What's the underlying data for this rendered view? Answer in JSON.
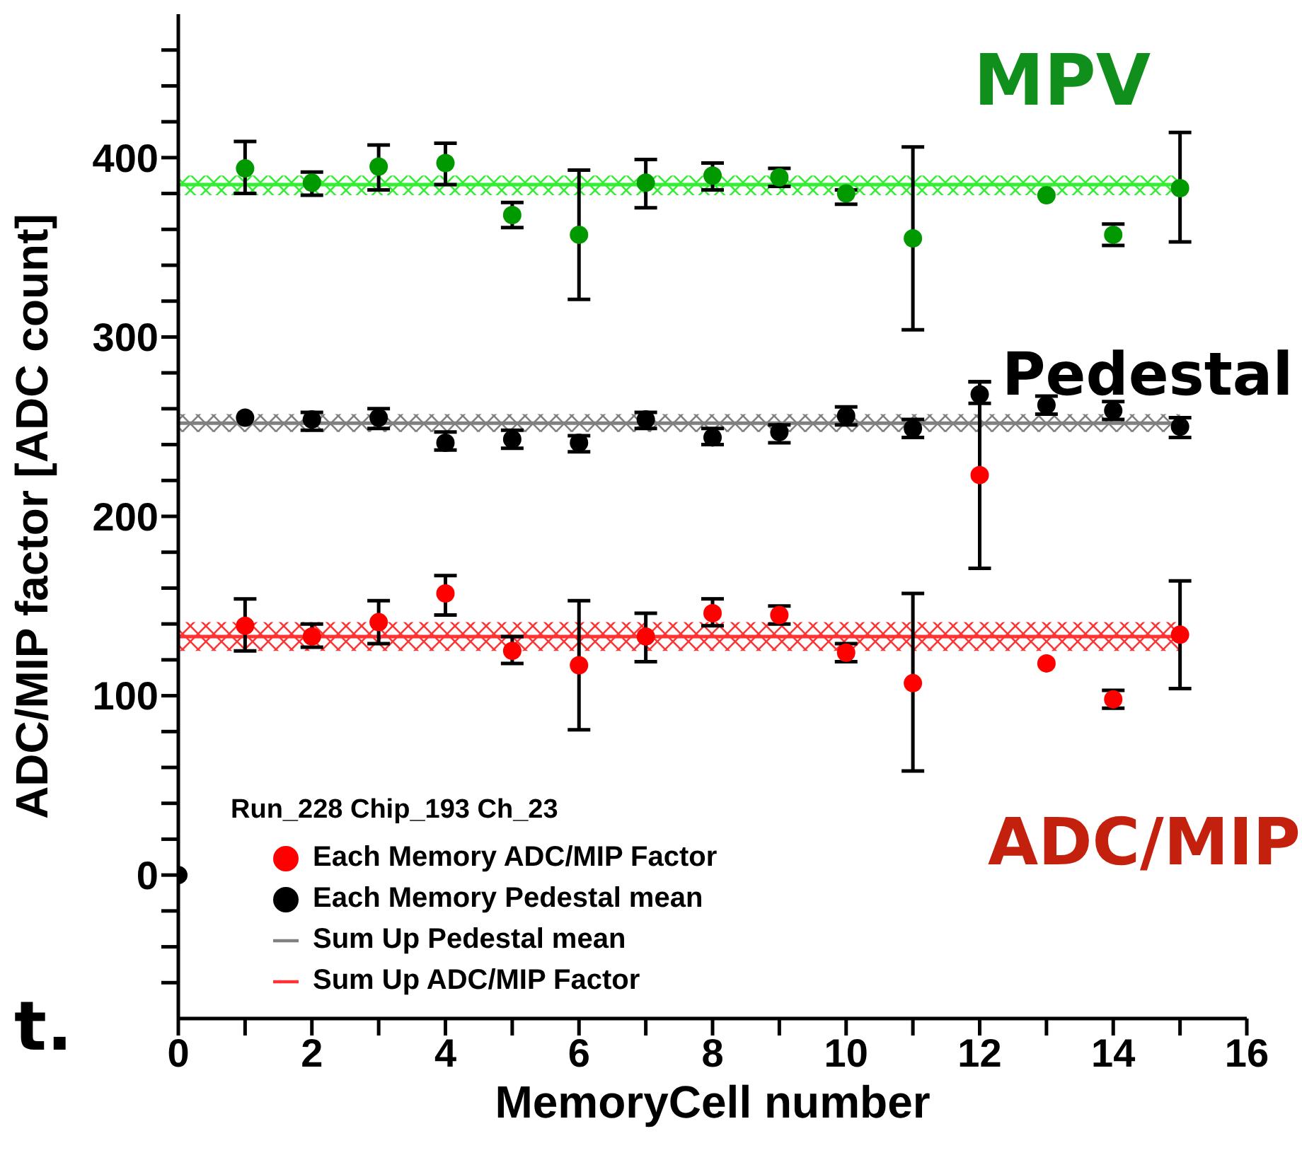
{
  "chart_data": {
    "type": "scatter",
    "xlabel": "MemoryCell number",
    "ylabel": "ADC/MIP factor [ADC count]",
    "legend_title": "Run_228 Chip_193 Ch_23",
    "legend": "bottom left",
    "marker": "circle",
    "xlim": [
      0,
      16
    ],
    "xticks": [
      0,
      {
        "value": 1,
        "label": null
      },
      2,
      {
        "value": 3,
        "label": null
      },
      4,
      {
        "value": 5,
        "label": null
      },
      6,
      {
        "value": 7,
        "label": null
      },
      8,
      {
        "value": 9,
        "label": null
      },
      10,
      {
        "value": 11,
        "label": null
      },
      12,
      {
        "value": 13,
        "label": null
      },
      14,
      {
        "value": 15,
        "label": null
      },
      16
    ],
    "ylim": [
      -80,
      480
    ],
    "yticks": [
      {
        "value": -60,
        "label": null
      },
      {
        "value": -40,
        "label": null
      },
      {
        "value": -20,
        "label": null
      },
      0,
      {
        "value": 20,
        "label": null
      },
      {
        "value": 40,
        "label": null
      },
      {
        "value": 60,
        "label": null
      },
      {
        "value": 80,
        "label": null
      },
      100,
      {
        "value": 120,
        "label": null
      },
      {
        "value": 140,
        "label": null
      },
      {
        "value": 160,
        "label": null
      },
      {
        "value": 180,
        "label": null
      },
      200,
      {
        "value": 220,
        "label": null
      },
      {
        "value": 240,
        "label": null
      },
      {
        "value": 260,
        "label": null
      },
      {
        "value": 280,
        "label": null
      },
      300,
      {
        "value": 320,
        "label": null
      },
      {
        "value": 340,
        "label": null
      },
      {
        "value": 360,
        "label": null
      },
      {
        "value": 380,
        "label": null
      },
      400,
      {
        "value": 420,
        "label": null
      },
      {
        "value": 440,
        "label": null
      },
      {
        "value": 460,
        "label": null
      }
    ],
    "series": [
      {
        "name": "Each Memory ADC/MIP Factor",
        "color": "#ff0000",
        "x": [
          1,
          2,
          3,
          4,
          5,
          6,
          7,
          8,
          9,
          10,
          11,
          12,
          13,
          14,
          15
        ],
        "values": [
          139,
          133,
          141,
          157,
          125,
          117,
          133,
          146,
          145,
          124,
          107,
          223,
          118,
          98,
          134
        ],
        "errors": [
          [
            125,
            154
          ],
          [
            127,
            140
          ],
          [
            129,
            153
          ],
          [
            145,
            167
          ],
          [
            118,
            133
          ],
          [
            81,
            153
          ],
          [
            119,
            146
          ],
          [
            139,
            154
          ],
          [
            140,
            150
          ],
          [
            119,
            129
          ],
          [
            58,
            157
          ],
          [
            171,
            275
          ],
          null,
          [
            93,
            103
          ],
          [
            104,
            164
          ]
        ]
      },
      {
        "name": "Each Memory Pedestal mean",
        "color": "#000000",
        "x": [
          0,
          1,
          2,
          3,
          4,
          5,
          6,
          7,
          8,
          9,
          10,
          11,
          12,
          13,
          14,
          15
        ],
        "values": [
          0,
          255,
          254,
          255,
          241,
          243,
          241,
          254,
          244,
          247,
          256,
          249,
          268,
          262,
          259,
          250
        ],
        "errors": [
          null,
          null,
          [
            248,
            258
          ],
          [
            249,
            260
          ],
          [
            237,
            247
          ],
          [
            238,
            248
          ],
          [
            236,
            245
          ],
          [
            249,
            258
          ],
          [
            240,
            249
          ],
          [
            241,
            251
          ],
          [
            251,
            261
          ],
          [
            244,
            254
          ],
          [
            263,
            275
          ],
          [
            257,
            267
          ],
          [
            254,
            264
          ],
          [
            244,
            255
          ]
        ]
      },
      {
        "type": "line",
        "marker": "none",
        "name": "Sum Up Pedestal mean",
        "color": "#808080",
        "x": [
          0,
          15
        ],
        "values": [
          252,
          252
        ],
        "lower": [
          247,
          247
        ],
        "upper": [
          257,
          257
        ]
      },
      {
        "type": "line",
        "marker": "none",
        "name": "Sum Up ADC/MIP Factor",
        "color": "#ff3333",
        "x": [
          0,
          15
        ],
        "values": [
          133,
          133
        ],
        "lower": [
          125,
          125
        ],
        "upper": [
          141,
          141
        ]
      },
      {
        "color": "#009900",
        "x": [
          1,
          2,
          3,
          4,
          5,
          6,
          7,
          8,
          9,
          10,
          11,
          13,
          14,
          15
        ],
        "values": [
          394,
          386,
          395,
          397,
          368,
          357,
          386,
          390,
          389,
          380,
          355,
          379,
          357,
          383
        ],
        "errors": [
          [
            380,
            409
          ],
          [
            379,
            392
          ],
          [
            382,
            407
          ],
          [
            385,
            408
          ],
          [
            361,
            375
          ],
          [
            321,
            393
          ],
          [
            372,
            399
          ],
          [
            382,
            397
          ],
          [
            384,
            394
          ],
          [
            374,
            382
          ],
          [
            304,
            406
          ],
          null,
          [
            351,
            363
          ],
          [
            353,
            414
          ]
        ]
      },
      {
        "type": "line",
        "marker": "none",
        "color": "#33ee33",
        "x": [
          0,
          15
        ],
        "values": [
          385,
          385
        ],
        "lower": [
          379,
          379
        ],
        "upper": [
          390,
          390
        ]
      }
    ],
    "annotations": [
      "MPV",
      "Pedestal",
      "ADC/MIP",
      "t."
    ]
  }
}
